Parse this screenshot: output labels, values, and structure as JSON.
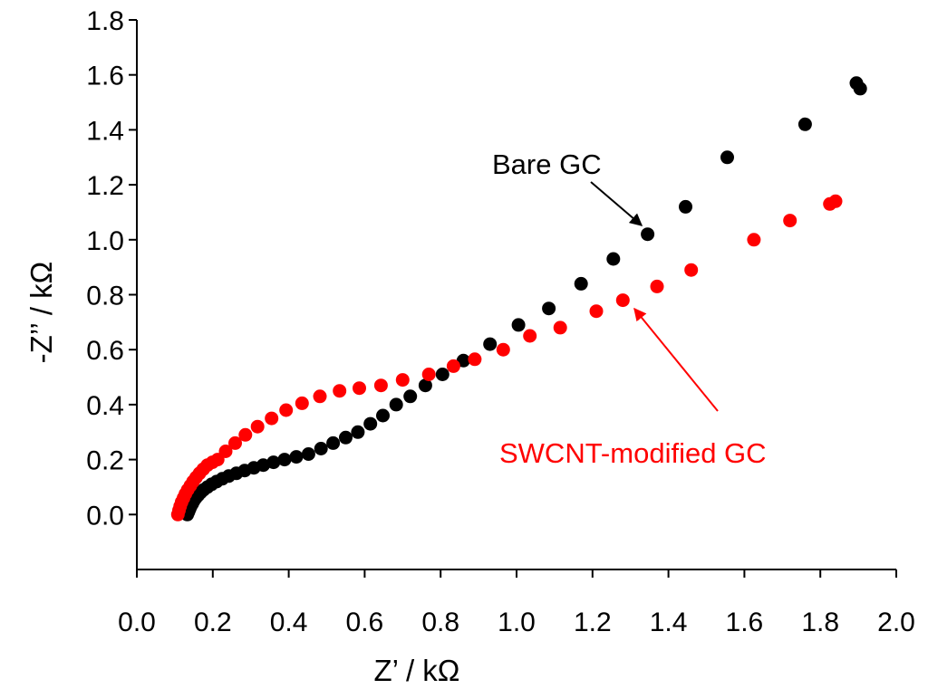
{
  "chart_data": {
    "type": "scatter",
    "title": "",
    "xlabel": "Z’ / kΩ",
    "ylabel": "-Z’’ / kΩ",
    "xlim": [
      0.0,
      2.0
    ],
    "ylim": [
      -0.2,
      1.8
    ],
    "xticks": [
      "0.0",
      "0.2",
      "0.4",
      "0.6",
      "0.8",
      "1.0",
      "1.2",
      "1.4",
      "1.6",
      "1.8",
      "2.0"
    ],
    "yticks": [
      "0.0",
      "0.2",
      "0.4",
      "0.6",
      "0.8",
      "1.0",
      "1.2",
      "1.4",
      "1.6",
      "1.8"
    ],
    "grid": false,
    "series": [
      {
        "name": "Bare GC",
        "color": "#000000",
        "points": [
          [
            0.133,
            0.0
          ],
          [
            0.136,
            0.01
          ],
          [
            0.139,
            0.02
          ],
          [
            0.142,
            0.03
          ],
          [
            0.146,
            0.04
          ],
          [
            0.15,
            0.05
          ],
          [
            0.155,
            0.06
          ],
          [
            0.161,
            0.07
          ],
          [
            0.168,
            0.08
          ],
          [
            0.176,
            0.09
          ],
          [
            0.186,
            0.1
          ],
          [
            0.197,
            0.11
          ],
          [
            0.21,
            0.12
          ],
          [
            0.225,
            0.13
          ],
          [
            0.242,
            0.14
          ],
          [
            0.262,
            0.15
          ],
          [
            0.284,
            0.16
          ],
          [
            0.308,
            0.17
          ],
          [
            0.333,
            0.18
          ],
          [
            0.36,
            0.19
          ],
          [
            0.389,
            0.2
          ],
          [
            0.42,
            0.21
          ],
          [
            0.452,
            0.22
          ],
          [
            0.485,
            0.24
          ],
          [
            0.517,
            0.26
          ],
          [
            0.55,
            0.28
          ],
          [
            0.582,
            0.3
          ],
          [
            0.615,
            0.33
          ],
          [
            0.648,
            0.36
          ],
          [
            0.683,
            0.4
          ],
          [
            0.72,
            0.43
          ],
          [
            0.76,
            0.47
          ],
          [
            0.805,
            0.51
          ],
          [
            0.86,
            0.56
          ],
          [
            0.93,
            0.62
          ],
          [
            1.005,
            0.69
          ],
          [
            1.085,
            0.75
          ],
          [
            1.17,
            0.84
          ],
          [
            1.255,
            0.93
          ],
          [
            1.345,
            1.02
          ],
          [
            1.445,
            1.12
          ],
          [
            1.555,
            1.3
          ],
          [
            1.76,
            1.42
          ],
          [
            1.895,
            1.57
          ],
          [
            1.905,
            1.55
          ]
        ]
      },
      {
        "name": "SWCNT-modified GC",
        "color": "#ff0000",
        "points": [
          [
            0.108,
            0.0
          ],
          [
            0.111,
            0.015
          ],
          [
            0.114,
            0.03
          ],
          [
            0.118,
            0.045
          ],
          [
            0.123,
            0.06
          ],
          [
            0.128,
            0.075
          ],
          [
            0.134,
            0.09
          ],
          [
            0.141,
            0.105
          ],
          [
            0.148,
            0.12
          ],
          [
            0.156,
            0.135
          ],
          [
            0.165,
            0.15
          ],
          [
            0.175,
            0.165
          ],
          [
            0.186,
            0.18
          ],
          [
            0.199,
            0.19
          ],
          [
            0.213,
            0.2
          ],
          [
            0.234,
            0.23
          ],
          [
            0.259,
            0.26
          ],
          [
            0.286,
            0.29
          ],
          [
            0.318,
            0.32
          ],
          [
            0.355,
            0.35
          ],
          [
            0.393,
            0.38
          ],
          [
            0.435,
            0.405
          ],
          [
            0.482,
            0.43
          ],
          [
            0.534,
            0.45
          ],
          [
            0.586,
            0.46
          ],
          [
            0.643,
            0.47
          ],
          [
            0.7,
            0.49
          ],
          [
            0.769,
            0.51
          ],
          [
            0.834,
            0.54
          ],
          [
            0.89,
            0.565
          ],
          [
            0.965,
            0.6
          ],
          [
            1.035,
            0.65
          ],
          [
            1.115,
            0.68
          ],
          [
            1.21,
            0.74
          ],
          [
            1.28,
            0.78
          ],
          [
            1.37,
            0.83
          ],
          [
            1.46,
            0.89
          ],
          [
            1.625,
            1.0
          ],
          [
            1.72,
            1.07
          ],
          [
            1.825,
            1.13
          ],
          [
            1.84,
            1.14
          ]
        ]
      }
    ],
    "annotations": [
      {
        "text": "Bare GC",
        "color": "#000000",
        "arrow_to": [
          1.345,
          1.02
        ]
      },
      {
        "text": "SWCNT-modified GC",
        "color": "#ff0000",
        "arrow_to": [
          1.28,
          0.78
        ]
      }
    ]
  }
}
